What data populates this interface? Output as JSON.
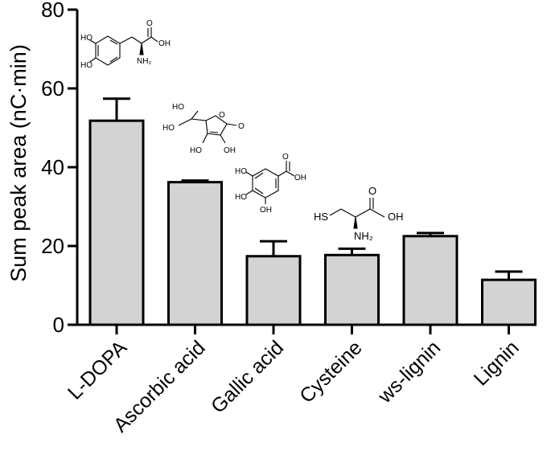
{
  "chart_data": {
    "type": "bar",
    "categories": [
      "L-DOPA",
      "Ascorbic acid",
      "Gallic acid",
      "Cysteine",
      "ws-lignin",
      "Lignin"
    ],
    "values": [
      51.8,
      36.2,
      17.4,
      17.7,
      22.5,
      11.4
    ],
    "errors": [
      5.6,
      0.4,
      3.8,
      1.6,
      0.8,
      2.1
    ],
    "title": "",
    "xlabel": "",
    "ylabel": "Sum peak area (nC·min)",
    "ylim": [
      0,
      80
    ],
    "yticks": [
      0,
      20,
      40,
      60,
      80
    ],
    "bar_color": "#d3d3d3",
    "edge_color": "#000000",
    "grid": false,
    "legend": "none",
    "structure_labels": {
      "ldopa": {
        "ho1": "HO",
        "ho2": "HO",
        "oh": "OH",
        "o": "O",
        "nh2": "NH₂"
      },
      "ascorbic": {
        "ho_top": "HO",
        "ho_left": "HO",
        "o_ring": "O",
        "o_keto": "O",
        "ho_bottom": "HO",
        "oh_bottom": "OH"
      },
      "gallic": {
        "o": "O",
        "oh_acid": "OH",
        "ho1": "HO",
        "ho2": "HO",
        "oh_ring": "OH"
      },
      "cysteine": {
        "hs": "HS",
        "o": "O",
        "oh": "OH",
        "nh2": "NH₂"
      }
    }
  }
}
